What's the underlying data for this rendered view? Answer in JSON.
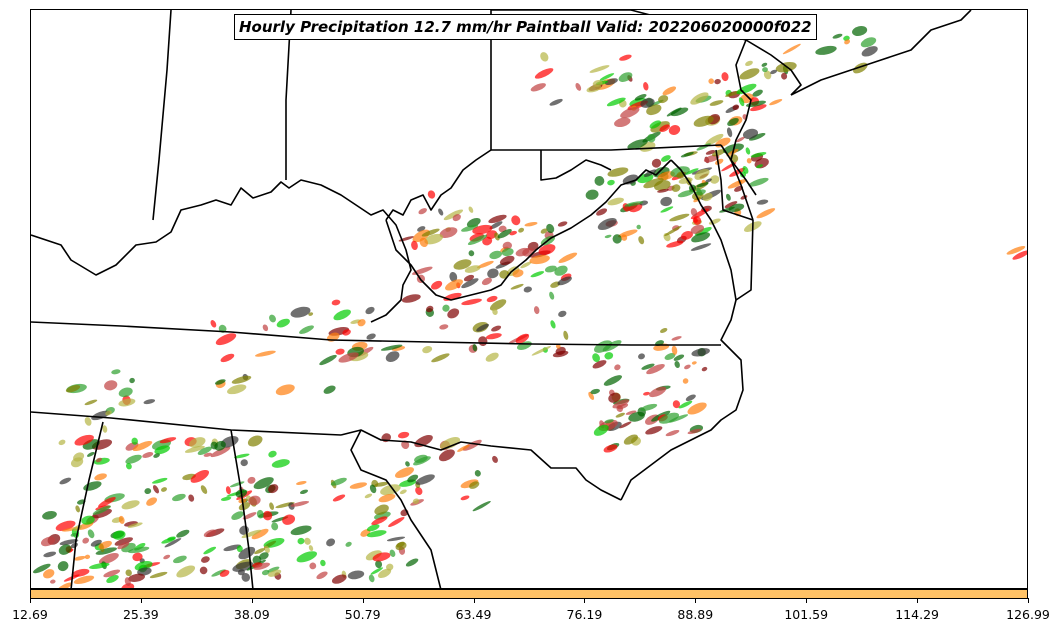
{
  "title": "Hourly Precipitation 12.7 mm/hr Paintball Valid: 202206020000f022",
  "colorbar": {
    "color": "#ffc266",
    "tick_labels": [
      "12.69",
      "25.39",
      "38.09",
      "50.79",
      "63.49",
      "76.19",
      "88.89",
      "101.59",
      "114.29",
      "126.99"
    ]
  },
  "member_colors": [
    "#ff0000",
    "#ff7f0e",
    "#2ca02c",
    "#00cc00",
    "#808000",
    "#7f0000",
    "#b5b545",
    "#333333",
    "#006400",
    "#c04040"
  ],
  "map": {
    "region": "Mid-Atlantic / Ohio Valley, US",
    "boundaries": "state borders and coastlines (black lines)"
  }
}
